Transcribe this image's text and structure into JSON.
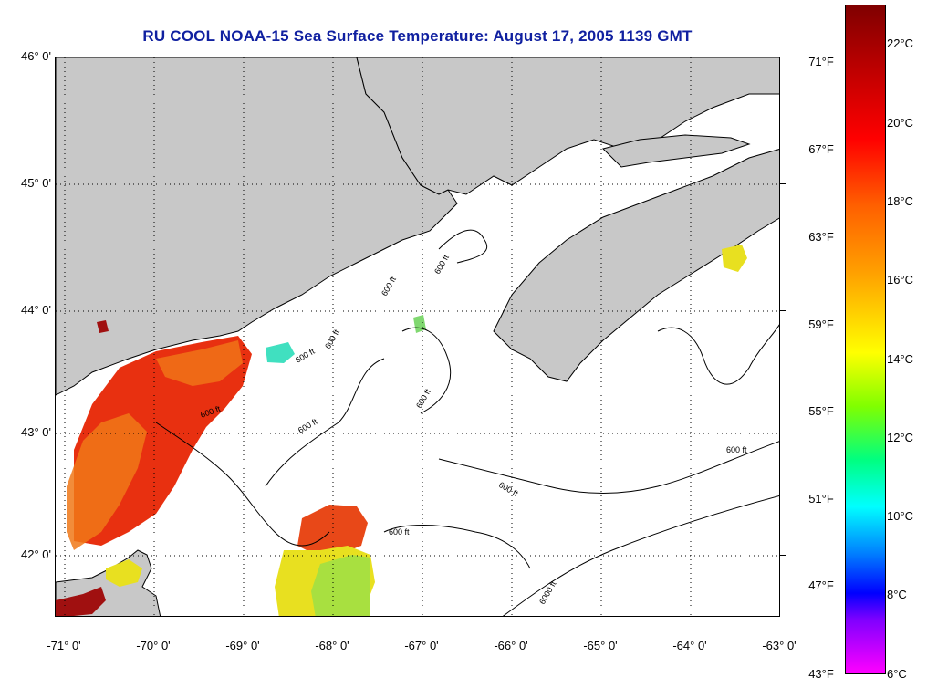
{
  "title": "RU COOL  NOAA-15  Sea Surface Temperature:  August 17, 2005 1139 GMT",
  "latitude_labels": [
    "46° 0'",
    "45° 0'",
    "44° 0'",
    "43° 0'",
    "42° 0'"
  ],
  "longitude_labels": [
    "-71° 0'",
    "-70° 0'",
    "-69° 0'",
    "-68° 0'",
    "-67° 0'",
    "-66° 0'",
    "-65° 0'",
    "-64° 0'",
    "-63° 0'"
  ],
  "fahrenheit_labels": [
    "71°F",
    "67°F",
    "63°F",
    "59°F",
    "55°F",
    "51°F",
    "47°F",
    "43°F"
  ],
  "celsius_labels": [
    "22°C",
    "20°C",
    "18°C",
    "16°C",
    "14°C",
    "12°C",
    "10°C",
    "8°C",
    "6°C"
  ],
  "contour_labels": [
    "600 ft",
    "600 ft",
    "600 ft",
    "600 ft",
    "600 ft",
    "600 ft",
    "600 ft",
    "600 ft",
    "600 ft",
    "600 ft",
    "6000 ft"
  ],
  "colors": {
    "land": "#c8c8c8",
    "title": "#1020a0",
    "sst_warm": "#e83010",
    "sst_mid": "#f07818",
    "sst_cool": "#e8e020",
    "sst_green": "#a8e040",
    "sst_cyan": "#40e0c0",
    "sst_dark": "#a01010"
  }
}
